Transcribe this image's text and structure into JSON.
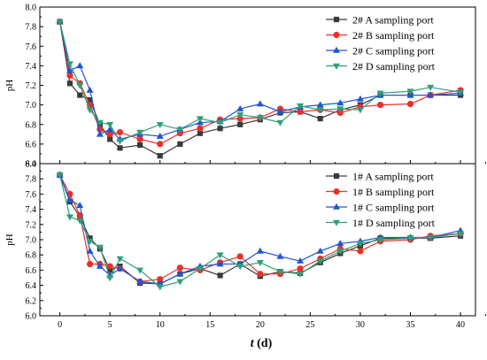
{
  "chart_data": [
    {
      "type": "line",
      "panel": "top",
      "ylabel": "pH",
      "xlim": [
        -2,
        41.5
      ],
      "ylim": [
        6.4,
        8.0
      ],
      "yticks": [
        "6.4",
        "6.6",
        "6.8",
        "7.0",
        "7.2",
        "7.4",
        "7.6",
        "7.8",
        "8.0"
      ],
      "legend_position": "top-right",
      "series": [
        {
          "name": "2# A sampling port",
          "color": "#3a3a3a",
          "marker": "square",
          "x": [
            0,
            1,
            2,
            3,
            4,
            5,
            6,
            8,
            10,
            12,
            14,
            16,
            18,
            20,
            22,
            24,
            26,
            28,
            30,
            32,
            35,
            37,
            40
          ],
          "y": [
            7.85,
            7.22,
            7.1,
            7.05,
            6.8,
            6.65,
            6.56,
            6.59,
            6.48,
            6.6,
            6.71,
            6.76,
            6.8,
            6.85,
            6.92,
            6.93,
            6.86,
            6.95,
            7.0,
            7.1,
            7.1,
            7.1,
            7.1
          ]
        },
        {
          "name": "2# B sampling port",
          "color": "#e8312b",
          "marker": "circle",
          "x": [
            0,
            1,
            2,
            3,
            4,
            5,
            6,
            8,
            10,
            12,
            14,
            16,
            18,
            20,
            22,
            24,
            26,
            28,
            30,
            32,
            35,
            37,
            40
          ],
          "y": [
            7.85,
            7.3,
            7.22,
            7.0,
            6.75,
            6.7,
            6.72,
            6.65,
            6.6,
            6.71,
            6.76,
            6.85,
            6.86,
            6.87,
            6.96,
            6.93,
            6.95,
            6.92,
            6.98,
            7.0,
            7.01,
            7.1,
            7.15
          ]
        },
        {
          "name": "2# C sampling port",
          "color": "#2155d3",
          "marker": "triangle-up",
          "x": [
            0,
            1,
            2,
            3,
            4,
            5,
            6,
            8,
            10,
            12,
            14,
            16,
            18,
            20,
            22,
            24,
            26,
            28,
            30,
            32,
            35,
            37,
            40
          ],
          "y": [
            7.85,
            7.35,
            7.4,
            7.15,
            6.7,
            6.75,
            6.65,
            6.7,
            6.68,
            6.75,
            6.82,
            6.83,
            6.96,
            7.01,
            6.93,
            6.98,
            7.0,
            7.02,
            7.06,
            7.1,
            7.1,
            7.1,
            7.12
          ]
        },
        {
          "name": "2# D sampling port",
          "color": "#2ea07a",
          "marker": "triangle-down",
          "x": [
            0,
            1,
            2,
            3,
            4,
            5,
            6,
            8,
            10,
            12,
            14,
            16,
            18,
            20,
            22,
            24,
            26,
            28,
            30,
            32,
            35,
            37,
            40
          ],
          "y": [
            7.85,
            7.42,
            7.2,
            6.95,
            6.82,
            6.8,
            6.63,
            6.72,
            6.8,
            6.75,
            6.86,
            6.82,
            6.9,
            6.87,
            6.82,
            6.99,
            6.95,
            6.96,
            6.95,
            7.12,
            7.14,
            7.18,
            7.13
          ]
        }
      ]
    },
    {
      "type": "line",
      "panel": "bottom",
      "ylabel": "pH",
      "xlabel": "t (d)",
      "xlim": [
        -2,
        41.5
      ],
      "ylim": [
        6.0,
        8.0
      ],
      "xticks": [
        0,
        5,
        10,
        15,
        20,
        25,
        30,
        35,
        40
      ],
      "yticks": [
        "6.0",
        "6.2",
        "6.4",
        "6.6",
        "6.8",
        "7.0",
        "7.2",
        "7.4",
        "7.6",
        "7.8",
        "8.0"
      ],
      "legend_position": "top-right",
      "series": [
        {
          "name": "1# A sampling port",
          "color": "#3a3a3a",
          "marker": "square",
          "x": [
            0,
            1,
            2,
            3,
            4,
            5,
            6,
            8,
            10,
            12,
            14,
            16,
            18,
            20,
            22,
            24,
            26,
            28,
            30,
            32,
            35,
            37,
            40
          ],
          "y": [
            7.85,
            7.5,
            7.3,
            7.02,
            6.88,
            6.6,
            6.65,
            6.43,
            6.42,
            6.55,
            6.62,
            6.53,
            6.68,
            6.52,
            6.58,
            6.56,
            6.7,
            6.82,
            6.92,
            7.02,
            7.02,
            7.02,
            7.05
          ]
        },
        {
          "name": "1# B sampling port",
          "color": "#e8312b",
          "marker": "circle",
          "x": [
            0,
            1,
            2,
            3,
            4,
            5,
            6,
            8,
            10,
            12,
            14,
            16,
            18,
            20,
            22,
            24,
            26,
            28,
            30,
            32,
            35,
            37,
            40
          ],
          "y": [
            7.85,
            7.6,
            7.32,
            6.68,
            6.68,
            6.65,
            6.62,
            6.45,
            6.48,
            6.63,
            6.6,
            6.7,
            6.78,
            6.55,
            6.55,
            6.62,
            6.75,
            6.88,
            6.85,
            6.98,
            7.0,
            7.05,
            7.08
          ]
        },
        {
          "name": "1# C sampling port",
          "color": "#2155d3",
          "marker": "triangle-up",
          "x": [
            0,
            1,
            2,
            3,
            4,
            5,
            6,
            8,
            10,
            12,
            14,
            16,
            18,
            20,
            22,
            24,
            26,
            28,
            30,
            32,
            35,
            37,
            40
          ],
          "y": [
            7.85,
            7.52,
            7.45,
            6.85,
            6.65,
            6.53,
            6.62,
            6.45,
            6.42,
            6.55,
            6.65,
            6.68,
            6.68,
            6.85,
            6.78,
            6.72,
            6.85,
            6.95,
            6.98,
            7.03,
            7.03,
            7.03,
            7.12
          ]
        },
        {
          "name": "1# D sampling port",
          "color": "#2ea07a",
          "marker": "triangle-down",
          "x": [
            0,
            1,
            2,
            3,
            4,
            5,
            6,
            8,
            10,
            12,
            14,
            16,
            18,
            20,
            22,
            24,
            26,
            28,
            30,
            32,
            35,
            37,
            40
          ],
          "y": [
            7.85,
            7.3,
            7.25,
            6.98,
            6.9,
            6.5,
            6.75,
            6.6,
            6.38,
            6.45,
            6.62,
            6.8,
            6.65,
            6.7,
            6.58,
            6.55,
            6.72,
            6.85,
            6.95,
            7.0,
            7.02,
            7.03,
            7.08
          ]
        }
      ]
    }
  ]
}
